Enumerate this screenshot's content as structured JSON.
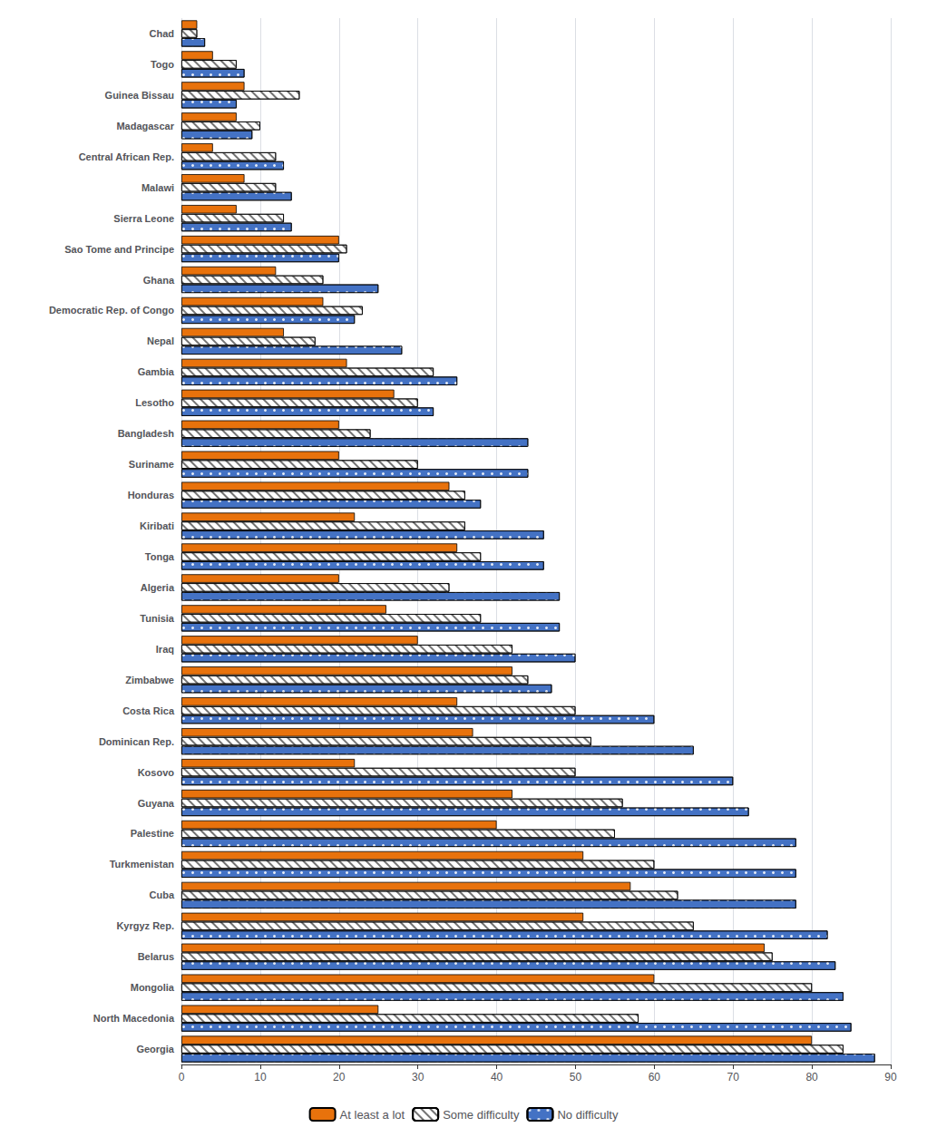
{
  "chart_data": {
    "type": "bar",
    "orientation": "horizontal",
    "categories": [
      "Chad",
      "Togo",
      "Guinea Bissau",
      "Madagascar",
      "Central African Rep.",
      "Malawi",
      "Sierra Leone",
      "Sao Tome and Principe",
      "Ghana",
      "Democratic Rep. of Congo",
      "Nepal",
      "Gambia",
      "Lesotho",
      "Bangladesh",
      "Suriname",
      "Honduras",
      "Kiribati",
      "Tonga",
      "Algeria",
      "Tunisia",
      "Iraq",
      "Zimbabwe",
      "Costa Rica",
      "Dominican Rep.",
      "Kosovo",
      "Guyana",
      "Palestine",
      "Turkmenistan",
      "Cuba",
      "Kyrgyz Rep.",
      "Belarus",
      "Mongolia",
      "North Macedonia",
      "Georgia"
    ],
    "series": [
      {
        "name": "At least a lot",
        "color": "#E8720C",
        "values": [
          2,
          4,
          8,
          7,
          4,
          8,
          7,
          20,
          12,
          18,
          13,
          21,
          27,
          20,
          20,
          34,
          22,
          35,
          20,
          26,
          30,
          42,
          35,
          37,
          22,
          42,
          40,
          51,
          57,
          51,
          74,
          60,
          25,
          80
        ]
      },
      {
        "name": "Some difficulty",
        "color": "#FFFFFF",
        "values": [
          2,
          7,
          15,
          10,
          12,
          12,
          13,
          21,
          18,
          23,
          17,
          32,
          30,
          24,
          30,
          36,
          36,
          38,
          34,
          38,
          42,
          44,
          50,
          52,
          50,
          56,
          55,
          60,
          63,
          65,
          75,
          80,
          58,
          84
        ]
      },
      {
        "name": "No difficulty",
        "color": "#4472C4",
        "values": [
          3,
          8,
          7,
          9,
          13,
          14,
          14,
          20,
          25,
          22,
          28,
          35,
          32,
          44,
          44,
          38,
          46,
          46,
          48,
          48,
          50,
          47,
          60,
          65,
          70,
          72,
          78,
          78,
          78,
          82,
          83,
          84,
          85,
          88
        ]
      }
    ],
    "xlim": [
      0,
      90
    ],
    "xticks": [
      0,
      10,
      20,
      30,
      40,
      50,
      60,
      70,
      80,
      90
    ],
    "grid": true,
    "legend": "bottom"
  }
}
